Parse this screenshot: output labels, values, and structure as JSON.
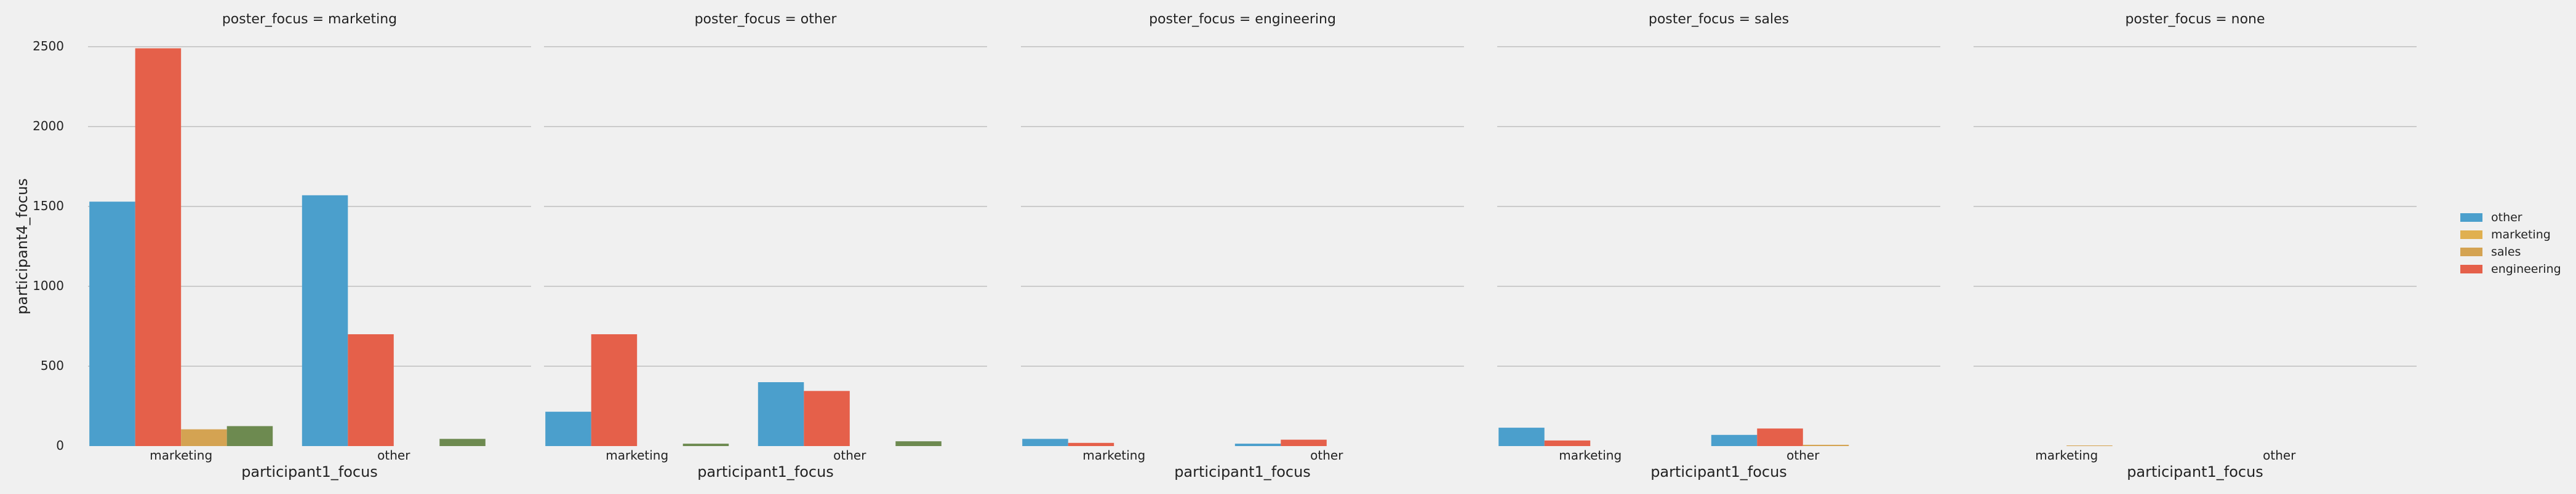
{
  "chart_data": {
    "type": "bar",
    "xlabel": "participant1_focus",
    "ylabel": "participant4_focus",
    "ylim": [
      0,
      2500
    ],
    "yticks": [
      0,
      500,
      1000,
      1500,
      2000,
      2500
    ],
    "grid": true,
    "legend_position": "right",
    "categories": [
      "marketing",
      "other"
    ],
    "colors": [
      "#4b9fcc",
      "#e0b050",
      "#d4a352",
      "#e5604a",
      "#6d8a50"
    ],
    "legend": [
      "other",
      "marketing",
      "sales",
      "engineering"
    ],
    "panels": [
      {
        "title": "poster_focus = marketing",
        "series": [
          {
            "values": [
              1530,
              1570
            ]
          },
          {
            "values": [
              2490,
              700
            ]
          },
          {
            "values": [
              105,
              0
            ]
          },
          {
            "values": [
              125,
              45
            ]
          }
        ]
      },
      {
        "title": "poster_focus = other",
        "series": [
          {
            "values": [
              215,
              400
            ]
          },
          {
            "values": [
              700,
              345
            ]
          },
          {
            "values": [
              0,
              0
            ]
          },
          {
            "values": [
              15,
              30
            ]
          }
        ]
      },
      {
        "title": "poster_focus = engineering",
        "series": [
          {
            "values": [
              45,
              15
            ]
          },
          {
            "values": [
              20,
              40
            ]
          },
          {
            "values": [
              0,
              0
            ]
          },
          {
            "values": [
              0,
              0
            ]
          }
        ]
      },
      {
        "title": "poster_focus = sales",
        "series": [
          {
            "values": [
              115,
              70
            ]
          },
          {
            "values": [
              35,
              110
            ]
          },
          {
            "values": [
              0,
              8
            ]
          },
          {
            "values": [
              0,
              0
            ]
          }
        ]
      },
      {
        "title": "poster_focus = none",
        "series": [
          {
            "values": [
              0,
              0
            ]
          },
          {
            "values": [
              0,
              0
            ]
          },
          {
            "values": [
              4,
              0
            ]
          },
          {
            "values": [
              0,
              0
            ]
          }
        ]
      }
    ]
  }
}
